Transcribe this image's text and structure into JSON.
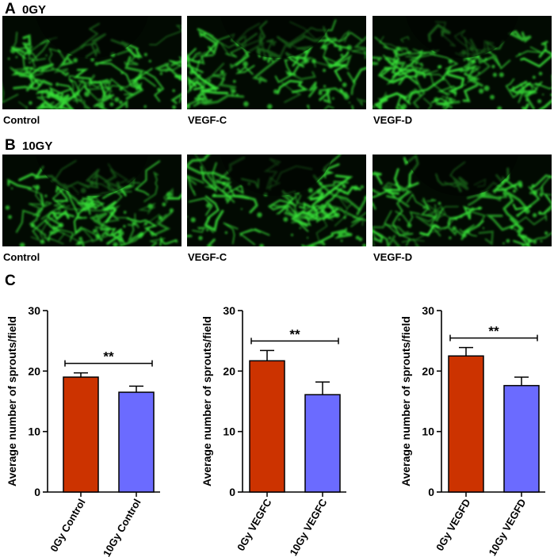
{
  "panel_a": {
    "letter": "A",
    "title": "0GY",
    "images": [
      {
        "caption": "Control",
        "signal_color": "#39e639",
        "seed": 11
      },
      {
        "caption": "VEGF-C",
        "signal_color": "#39e639",
        "seed": 23
      },
      {
        "caption": "VEGF-D",
        "signal_color": "#39e639",
        "seed": 37
      }
    ]
  },
  "panel_b": {
    "letter": "B",
    "title": "10GY",
    "images": [
      {
        "caption": "Control",
        "signal_color": "#39e639",
        "seed": 51
      },
      {
        "caption": "VEGF-C",
        "signal_color": "#39e639",
        "seed": 67
      },
      {
        "caption": "VEGF-D",
        "signal_color": "#39e639",
        "seed": 83
      }
    ]
  },
  "panel_c": {
    "letter": "C"
  },
  "chart_data": [
    {
      "type": "bar",
      "categories": [
        "0Gy Control",
        "10Gy Control"
      ],
      "values": [
        19.0,
        16.5
      ],
      "errors": [
        0.7,
        1.0
      ],
      "colors": [
        "#cc3300",
        "#6b6bff"
      ],
      "ylabel": "Average number of sprouts/field",
      "ylim": [
        0,
        30
      ],
      "yticks": [
        0,
        10,
        20,
        30
      ],
      "significance": "**"
    },
    {
      "type": "bar",
      "categories": [
        "0Gy VEGFC",
        "10Gy VEGFC"
      ],
      "values": [
        21.7,
        16.1
      ],
      "errors": [
        1.7,
        2.1
      ],
      "colors": [
        "#cc3300",
        "#6b6bff"
      ],
      "ylabel": "Average number of sprouts/field",
      "ylim": [
        0,
        30
      ],
      "yticks": [
        0,
        10,
        20,
        30
      ],
      "significance": "**"
    },
    {
      "type": "bar",
      "categories": [
        "0Gy VEGFD",
        "10Gy VEGFD"
      ],
      "values": [
        22.5,
        17.6
      ],
      "errors": [
        1.4,
        1.4
      ],
      "colors": [
        "#cc3300",
        "#6b6bff"
      ],
      "ylabel": "Average number of sprouts/field",
      "ylim": [
        0,
        30
      ],
      "yticks": [
        0,
        10,
        20,
        30
      ],
      "significance": "**"
    }
  ]
}
